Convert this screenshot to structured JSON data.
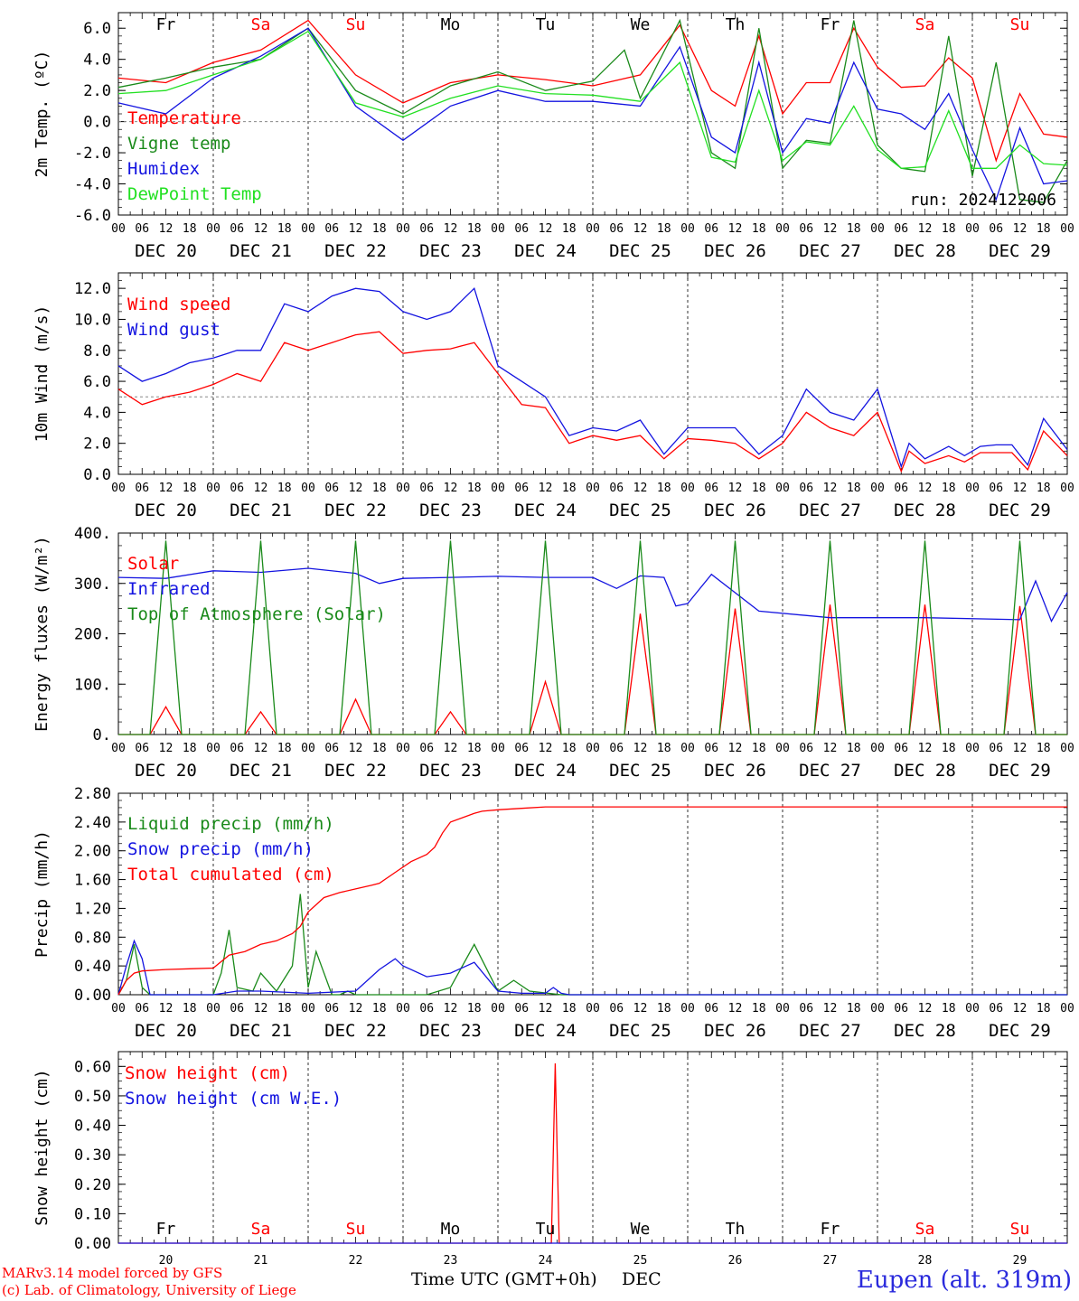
{
  "meta": {
    "model_line1": "MARv3.14 model forced by GFS",
    "model_line2": "(c) Lab. of Climatology, University of Liege",
    "station": "Eupen (alt. 319m)",
    "x_title": "Time UTC (GMT+0h)",
    "x_title_month": "DEC",
    "run": "run: 2024122006"
  },
  "colors": {
    "red": "#ff0000",
    "green": "#1a8a1a",
    "blue": "#1414e0",
    "lightgreen": "#22e022",
    "weekday": "#000000",
    "weekend": "#ff0000"
  },
  "days": {
    "weekdays": [
      "Fr",
      "Sa",
      "Su",
      "Mo",
      "Tu",
      "We",
      "Th",
      "Fr",
      "Sa",
      "Su"
    ],
    "weekend_flags": [
      false,
      true,
      true,
      false,
      false,
      false,
      false,
      false,
      true,
      true
    ],
    "dates": [
      "DEC 20",
      "DEC 21",
      "DEC 22",
      "DEC 23",
      "DEC 24",
      "DEC 25",
      "DEC 26",
      "DEC 27",
      "DEC 28",
      "DEC 29"
    ],
    "day_numbers": [
      "20",
      "21",
      "22",
      "23",
      "24",
      "25",
      "26",
      "27",
      "28",
      "29"
    ],
    "hour_labels": [
      "00",
      "06",
      "12",
      "18"
    ],
    "end_hour_label": "00"
  },
  "chart_data": [
    {
      "type": "line",
      "ylabel": "2m Temp. (ºC)",
      "ylim": [
        -6,
        7
      ],
      "yticks": [
        "-6.0",
        "-4.0",
        "-2.0",
        "0.0",
        "2.0",
        "4.0",
        "6.0"
      ],
      "ytick_values": [
        -6,
        -4,
        -2,
        0,
        2,
        4,
        6
      ],
      "ref_line": 0,
      "x_units": "hours from DEC 20 00 UTC",
      "series": [
        {
          "name": "Temperature",
          "color": "red",
          "x": [
            0,
            12,
            24,
            36,
            48,
            60,
            72,
            84,
            96,
            108,
            120,
            132,
            142,
            150,
            156,
            162,
            168,
            174,
            180,
            186,
            192,
            198,
            204,
            210,
            216,
            222,
            228,
            234,
            240
          ],
          "y": [
            2.8,
            2.5,
            3.8,
            4.6,
            6.5,
            3.0,
            1.2,
            2.5,
            3.0,
            2.7,
            2.3,
            3.0,
            6.2,
            2.0,
            1.0,
            5.5,
            0.5,
            2.5,
            2.5,
            6.0,
            3.5,
            2.2,
            2.3,
            4.1,
            2.8,
            -2.5,
            1.8,
            -0.8,
            -1.0
          ]
        },
        {
          "name": "Vigne temp",
          "color": "green",
          "x": [
            0,
            12,
            24,
            36,
            48,
            60,
            72,
            84,
            96,
            108,
            120,
            128,
            132,
            142,
            150,
            156,
            162,
            168,
            174,
            180,
            186,
            192,
            198,
            204,
            210,
            216,
            222,
            228,
            234,
            240
          ],
          "y": [
            2.2,
            2.8,
            3.5,
            4.0,
            6.0,
            2.0,
            0.5,
            2.3,
            3.2,
            2.0,
            2.6,
            4.6,
            1.5,
            6.5,
            -2.0,
            -3.0,
            6.0,
            -3.0,
            -1.2,
            -1.4,
            6.5,
            -1.5,
            -3.0,
            -3.2,
            5.5,
            -3.5,
            3.8,
            -5.0,
            -5.2,
            -2.5
          ]
        },
        {
          "name": "Humidex",
          "color": "blue",
          "x": [
            0,
            12,
            24,
            36,
            48,
            60,
            72,
            84,
            96,
            108,
            120,
            132,
            142,
            150,
            156,
            162,
            168,
            174,
            180,
            186,
            192,
            198,
            204,
            210,
            216,
            222,
            228,
            234,
            240
          ],
          "y": [
            1.2,
            0.5,
            2.8,
            4.2,
            6.0,
            1.0,
            -1.2,
            1.0,
            2.0,
            1.3,
            1.3,
            1.0,
            4.8,
            -1.0,
            -2.0,
            3.8,
            -2.0,
            0.2,
            -0.1,
            3.8,
            0.8,
            0.5,
            -0.5,
            1.8,
            -1.8,
            -5.0,
            -0.4,
            -4.0,
            -3.8
          ]
        },
        {
          "name": "DewPoint Temp",
          "color": "lightgreen",
          "x": [
            0,
            12,
            24,
            36,
            48,
            60,
            72,
            84,
            96,
            108,
            120,
            132,
            142,
            150,
            156,
            162,
            168,
            174,
            180,
            186,
            192,
            198,
            204,
            210,
            216,
            222,
            228,
            234,
            240
          ],
          "y": [
            1.8,
            2.0,
            3.0,
            4.0,
            5.8,
            1.2,
            0.3,
            1.5,
            2.3,
            1.8,
            1.7,
            1.3,
            3.8,
            -2.3,
            -2.6,
            2.0,
            -2.5,
            -1.3,
            -1.5,
            1.0,
            -1.8,
            -3.0,
            -2.9,
            0.7,
            -3.0,
            -3.0,
            -1.5,
            -2.7,
            -2.8
          ]
        }
      ]
    },
    {
      "type": "line",
      "ylabel": "10m Wind (m/s)",
      "ylim": [
        0,
        13
      ],
      "yticks": [
        "0.0",
        "2.0",
        "4.0",
        "6.0",
        "8.0",
        "10.0",
        "12.0"
      ],
      "ytick_values": [
        0,
        2,
        4,
        6,
        8,
        10,
        12
      ],
      "ref_line": 5,
      "x_units": "hours from DEC 20 00 UTC",
      "series": [
        {
          "name": "Wind speed",
          "color": "red",
          "x": [
            0,
            6,
            12,
            18,
            24,
            30,
            36,
            42,
            48,
            54,
            60,
            66,
            72,
            78,
            84,
            90,
            96,
            102,
            108,
            114,
            120,
            126,
            132,
            138,
            144,
            150,
            156,
            162,
            168,
            174,
            180,
            186,
            192,
            198,
            200,
            204,
            210,
            214,
            218,
            222,
            226,
            230,
            234,
            240
          ],
          "y": [
            5.5,
            4.5,
            5.0,
            5.3,
            5.8,
            6.5,
            6.0,
            8.5,
            8.0,
            8.5,
            9.0,
            9.2,
            7.8,
            8.0,
            8.1,
            8.5,
            6.5,
            4.5,
            4.3,
            2.0,
            2.5,
            2.2,
            2.5,
            1.0,
            2.3,
            2.2,
            2.0,
            1.0,
            2.0,
            4.0,
            3.0,
            2.5,
            4.0,
            0.2,
            1.5,
            0.7,
            1.2,
            0.8,
            1.4,
            1.4,
            1.4,
            0.3,
            2.8,
            1.2
          ]
        },
        {
          "name": "Wind gust",
          "color": "blue",
          "x": [
            0,
            6,
            12,
            18,
            24,
            30,
            36,
            42,
            48,
            54,
            60,
            66,
            72,
            78,
            84,
            90,
            96,
            102,
            108,
            114,
            120,
            126,
            132,
            138,
            144,
            150,
            156,
            162,
            168,
            174,
            180,
            186,
            192,
            198,
            200,
            204,
            210,
            214,
            218,
            222,
            226,
            230,
            234,
            240
          ],
          "y": [
            7.0,
            6.0,
            6.5,
            7.2,
            7.5,
            8.0,
            8.0,
            11.0,
            10.5,
            11.5,
            12.0,
            11.8,
            10.5,
            10.0,
            10.5,
            12.0,
            7.0,
            6.0,
            5.0,
            2.5,
            3.0,
            2.8,
            3.5,
            1.3,
            3.0,
            3.0,
            3.0,
            1.3,
            2.5,
            5.5,
            4.0,
            3.5,
            5.5,
            0.5,
            2.0,
            1.0,
            1.8,
            1.2,
            1.8,
            1.9,
            1.9,
            0.6,
            3.6,
            1.6
          ]
        }
      ]
    },
    {
      "type": "line",
      "ylabel": "Energy fluxes (W/m²)",
      "ylim": [
        0,
        400
      ],
      "yticks": [
        "0.",
        "100.",
        "200.",
        "300.",
        "400."
      ],
      "ytick_values": [
        0,
        100,
        200,
        300,
        400
      ],
      "x_units": "hours from DEC 20 00 UTC",
      "series": [
        {
          "name": "Solar",
          "color": "red",
          "x": [
            0,
            8,
            12,
            16,
            24,
            32,
            36,
            40,
            48,
            56,
            60,
            64,
            72,
            80,
            84,
            88,
            96,
            104,
            108,
            112,
            120,
            128,
            132,
            136,
            144,
            152,
            156,
            160,
            168,
            176,
            180,
            184,
            192,
            200,
            204,
            208,
            216,
            224,
            228,
            232,
            240
          ],
          "y": [
            0,
            0,
            55,
            0,
            0,
            0,
            45,
            0,
            0,
            0,
            70,
            0,
            0,
            0,
            45,
            0,
            0,
            0,
            105,
            0,
            0,
            0,
            240,
            0,
            0,
            0,
            250,
            0,
            0,
            0,
            258,
            0,
            0,
            0,
            258,
            0,
            0,
            0,
            255,
            0,
            0
          ]
        },
        {
          "name": "Infrared",
          "color": "blue",
          "x": [
            0,
            12,
            24,
            36,
            48,
            60,
            66,
            72,
            84,
            96,
            108,
            120,
            126,
            132,
            138,
            141,
            144,
            150,
            162,
            180,
            204,
            228,
            232,
            236,
            240
          ],
          "y": [
            312,
            310,
            325,
            322,
            330,
            320,
            300,
            310,
            312,
            314,
            312,
            312,
            290,
            315,
            312,
            255,
            260,
            318,
            245,
            232,
            232,
            228,
            305,
            225,
            282
          ]
        },
        {
          "name": "Top of Atmosphere (Solar)",
          "color": "green",
          "x": [
            0,
            8,
            12,
            16,
            24,
            32,
            36,
            40,
            48,
            56,
            60,
            64,
            72,
            80,
            84,
            88,
            96,
            104,
            108,
            112,
            120,
            128,
            132,
            136,
            144,
            152,
            156,
            160,
            168,
            176,
            180,
            184,
            192,
            200,
            204,
            208,
            216,
            224,
            228,
            232,
            240
          ],
          "y": [
            0,
            0,
            385,
            0,
            0,
            0,
            385,
            0,
            0,
            0,
            385,
            0,
            0,
            0,
            385,
            0,
            0,
            0,
            385,
            0,
            0,
            0,
            385,
            0,
            0,
            0,
            385,
            0,
            0,
            0,
            385,
            0,
            0,
            0,
            385,
            0,
            0,
            0,
            385,
            0,
            0
          ]
        }
      ]
    },
    {
      "type": "line",
      "ylabel": "Precip (mm/h)",
      "ylim": [
        0,
        2.8
      ],
      "yticks": [
        "0.00",
        "0.40",
        "0.80",
        "1.20",
        "1.60",
        "2.00",
        "2.40",
        "2.80"
      ],
      "ytick_values": [
        0,
        0.4,
        0.8,
        1.2,
        1.6,
        2.0,
        2.4,
        2.8
      ],
      "x_units": "hours from DEC 20 00 UTC",
      "series": [
        {
          "name": "Liquid precip (mm/h)",
          "color": "green",
          "x": [
            0,
            2,
            4,
            6,
            8,
            12,
            20,
            24,
            26,
            28,
            30,
            34,
            36,
            40,
            44,
            46,
            48,
            50,
            54,
            56,
            58,
            60,
            66,
            72,
            78,
            84,
            90,
            96,
            100,
            104,
            112,
            120,
            240
          ],
          "y": [
            0,
            0.2,
            0.7,
            0.1,
            0,
            0,
            0,
            0,
            0.3,
            0.9,
            0.1,
            0.05,
            0.3,
            0.05,
            0.4,
            1.4,
            0.1,
            0.6,
            0,
            0,
            0.05,
            0,
            0,
            0,
            0,
            0.1,
            0.7,
            0.05,
            0.2,
            0.05,
            0,
            0,
            0
          ]
        },
        {
          "name": "Snow precip (mm/h)",
          "color": "blue",
          "x": [
            0,
            2,
            4,
            6,
            8,
            12,
            24,
            30,
            36,
            48,
            60,
            66,
            70,
            72,
            78,
            84,
            90,
            96,
            102,
            108,
            110,
            112,
            114,
            240
          ],
          "y": [
            0,
            0.4,
            0.75,
            0.5,
            0,
            0,
            0,
            0.05,
            0.05,
            0.02,
            0.05,
            0.35,
            0.5,
            0.4,
            0.25,
            0.3,
            0.45,
            0.05,
            0.02,
            0.02,
            0.1,
            0.02,
            0,
            0
          ]
        },
        {
          "name": "Total cumulated (cm)",
          "color": "red",
          "x": [
            0,
            2,
            4,
            6,
            12,
            18,
            24,
            28,
            32,
            36,
            40,
            44,
            46,
            48,
            52,
            56,
            60,
            64,
            66,
            70,
            74,
            78,
            80,
            82,
            84,
            88,
            90,
            92,
            96,
            102,
            108,
            114,
            120,
            240
          ],
          "y": [
            0,
            0.2,
            0.3,
            0.33,
            0.35,
            0.36,
            0.37,
            0.55,
            0.6,
            0.7,
            0.75,
            0.85,
            0.95,
            1.15,
            1.35,
            1.42,
            1.47,
            1.52,
            1.55,
            1.7,
            1.85,
            1.95,
            2.05,
            2.25,
            2.4,
            2.48,
            2.52,
            2.55,
            2.57,
            2.59,
            2.61,
            2.61,
            2.61,
            2.61
          ]
        }
      ]
    },
    {
      "type": "line",
      "ylabel": "Snow height (cm)",
      "ylim": [
        0,
        0.65
      ],
      "yticks": [
        "0.00",
        "0.10",
        "0.20",
        "0.30",
        "0.40",
        "0.50",
        "0.60"
      ],
      "ytick_values": [
        0,
        0.1,
        0.2,
        0.3,
        0.4,
        0.5,
        0.6
      ],
      "x_units": "hours from DEC 20 00 UTC",
      "series": [
        {
          "name": "Snow height (cm)",
          "color": "red",
          "x": [
            0,
            109.5,
            110.5,
            111.5,
            240
          ],
          "y": [
            0,
            0,
            0.61,
            0,
            0
          ]
        },
        {
          "name": "Snow height (cm W.E.)",
          "color": "blue",
          "x": [
            0,
            240
          ],
          "y": [
            0,
            0
          ]
        }
      ]
    }
  ]
}
